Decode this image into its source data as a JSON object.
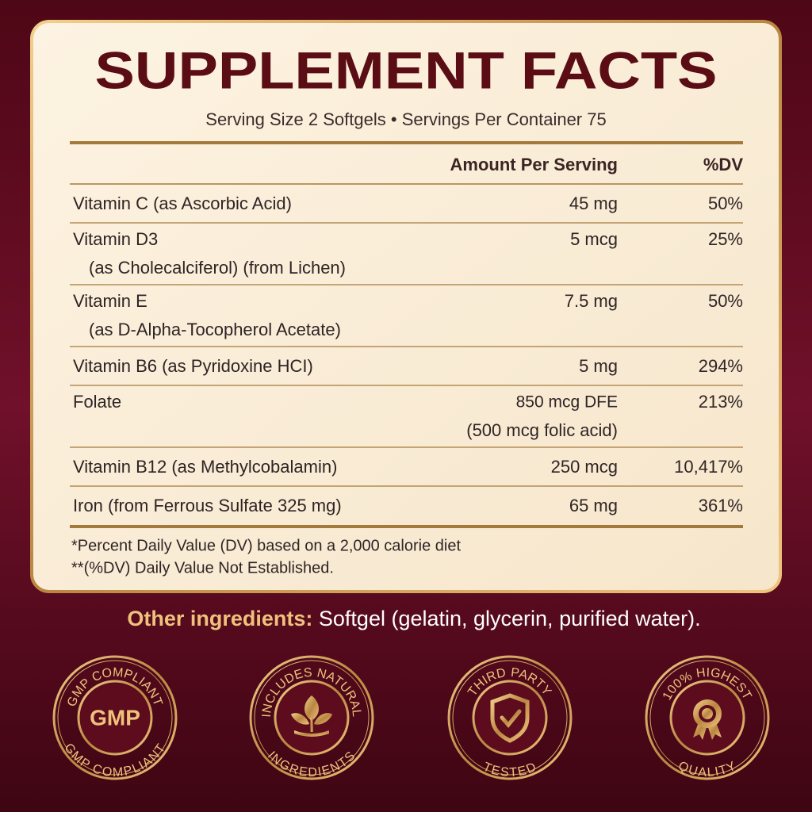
{
  "title": "SUPPLEMENT FACTS",
  "serving": {
    "size": "Serving Size 2 Softgels",
    "bullet": "•",
    "per_container": "Servings Per Container 75"
  },
  "table": {
    "headers": [
      "Amount Per Serving",
      "%DV"
    ],
    "rows": [
      {
        "name": [
          "Vitamin C (as Ascorbic Acid)"
        ],
        "amount": [
          "45 mg"
        ],
        "dv": "50%"
      },
      {
        "name": [
          "Vitamin D3",
          "(as Cholecalciferol) (from Lichen)"
        ],
        "amount": [
          "5 mcg"
        ],
        "dv": "25%"
      },
      {
        "name": [
          "Vitamin E",
          "(as D-Alpha-Tocopherol Acetate)"
        ],
        "amount": [
          "7.5 mg"
        ],
        "dv": "50%"
      },
      {
        "name": [
          "Vitamin B6 (as Pyridoxine HCI)"
        ],
        "amount": [
          "5 mg"
        ],
        "dv": "294%"
      },
      {
        "name": [
          "Folate"
        ],
        "amount": [
          "850 mcg DFE",
          "(500 mcg folic acid)"
        ],
        "dv": "213%"
      },
      {
        "name": [
          "Vitamin B12 (as Methylcobalamin)"
        ],
        "amount": [
          "250 mcg"
        ],
        "dv": "10,417%"
      },
      {
        "name": [
          "Iron (from Ferrous Sulfate 325 mg)"
        ],
        "amount": [
          "65 mg"
        ],
        "dv": "361%"
      }
    ]
  },
  "footnotes": [
    "*Percent Daily Value (DV) based on a 2,000 calorie diet",
    "**(%DV) Daily Value Not Established."
  ],
  "other_ingredients": {
    "label": "Other ingredients:",
    "text": "Softgel (gelatin, glycerin, purified water)."
  },
  "badges": [
    {
      "top": "GMP COMPLIANT",
      "bottom": "GMP COMPLIANT",
      "center": "GMP"
    },
    {
      "top": "INCLUDES NATURAL",
      "bottom": "INGREDIENTS"
    },
    {
      "top": "THIRD PARTY",
      "bottom": "TESTED"
    },
    {
      "top": "100% HIGHEST",
      "bottom": "QUALITY"
    }
  ]
}
